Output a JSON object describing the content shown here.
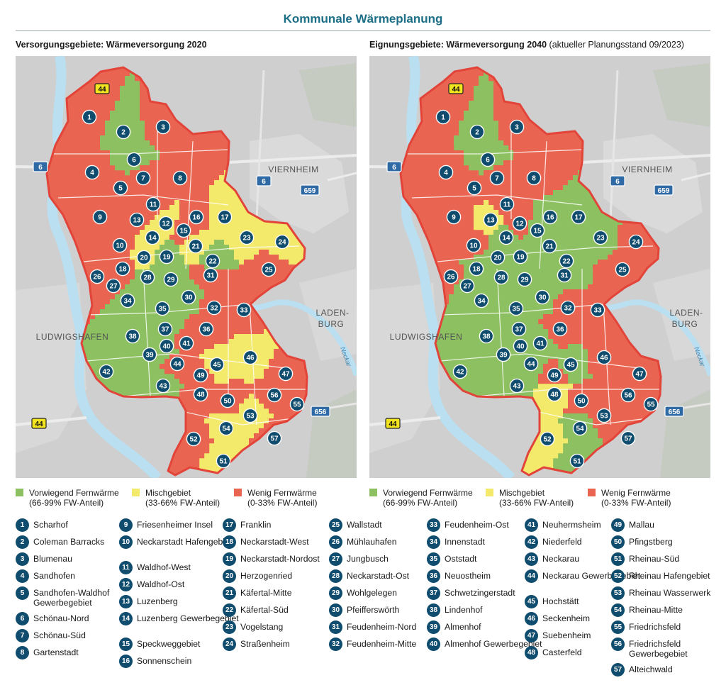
{
  "title": "Kommunale Wärmeplanung",
  "map_left": {
    "heading": "Versorgungsgebiete: Wärmeversorgung 2020",
    "subheading": ""
  },
  "map_right": {
    "heading": "Eignungsgebiete: Wärmeversorgung 2040",
    "subheading": "(aktueller Planungsstand 09/2023)"
  },
  "map_labels": {
    "viernheim": "VIERNHEIM",
    "ludwigshafen": "LUDWIGSHAFEN",
    "laden": "LADEN-",
    "burg": "BURG",
    "neckar": "Neckar",
    "road_44": "44",
    "road_6": "6",
    "road_659": "659",
    "road_656": "656"
  },
  "legend": {
    "green": {
      "line1": "Vorwiegend Fernwärme",
      "line2": "(66-99% FW-Anteil)",
      "color": "#8cc060"
    },
    "yellow": {
      "line1": "Mischgebiet",
      "line2": "(33-66% FW-Anteil)",
      "color": "#f3e96b"
    },
    "red": {
      "line1": "Wenig Fernwärme",
      "line2": "(0-33% FW-Anteil)",
      "color": "#ea6551"
    }
  },
  "colors": {
    "badge": "#0f4c6e",
    "title": "#1b6e86",
    "outline": "#e2443a",
    "road": "#f2e41e",
    "water": "#b9dff0",
    "land": "#cfcfcf"
  },
  "districts": [
    {
      "n": "1",
      "name": "Scharhof"
    },
    {
      "n": "2",
      "name": "Coleman Barracks"
    },
    {
      "n": "3",
      "name": "Blumenau"
    },
    {
      "n": "4",
      "name": "Sandhofen"
    },
    {
      "n": "5",
      "name": "Sandhofen-Waldhof Gewerbegebiet"
    },
    {
      "n": "6",
      "name": "Schönau-Nord"
    },
    {
      "n": "7",
      "name": "Schönau-Süd"
    },
    {
      "n": "8",
      "name": "Gartenstadt"
    },
    {
      "n": "9",
      "name": "Friesenheimer Insel"
    },
    {
      "n": "10",
      "name": "Neckarstadt Hafengebiet"
    },
    {
      "n": "11",
      "name": "Waldhof-West"
    },
    {
      "n": "12",
      "name": "Waldhof-Ost"
    },
    {
      "n": "13",
      "name": "Luzenberg"
    },
    {
      "n": "14",
      "name": "Luzenberg Gewerbegebiet"
    },
    {
      "n": "15",
      "name": "Speckweggebiet"
    },
    {
      "n": "16",
      "name": "Sonnenschein"
    },
    {
      "n": "17",
      "name": "Franklin"
    },
    {
      "n": "18",
      "name": "Neckarstadt-West"
    },
    {
      "n": "19",
      "name": "Neckarstadt-Nordost"
    },
    {
      "n": "20",
      "name": "Herzogenried"
    },
    {
      "n": "21",
      "name": "Käfertal-Mitte"
    },
    {
      "n": "22",
      "name": "Käfertal-Süd"
    },
    {
      "n": "23",
      "name": "Vogelstang"
    },
    {
      "n": "24",
      "name": "Straßenheim"
    },
    {
      "n": "25",
      "name": "Wallstadt"
    },
    {
      "n": "26",
      "name": "Mühlauhafen"
    },
    {
      "n": "27",
      "name": "Jungbusch"
    },
    {
      "n": "28",
      "name": "Neckarstadt-Ost"
    },
    {
      "n": "29",
      "name": "Wohlgelegen"
    },
    {
      "n": "30",
      "name": "Pfeifferswörth"
    },
    {
      "n": "31",
      "name": "Feudenheim-Nord"
    },
    {
      "n": "32",
      "name": "Feudenheim-Mitte"
    },
    {
      "n": "33",
      "name": "Feudenheim-Ost"
    },
    {
      "n": "34",
      "name": "Innenstadt"
    },
    {
      "n": "35",
      "name": "Oststadt"
    },
    {
      "n": "36",
      "name": "Neuostheim"
    },
    {
      "n": "37",
      "name": "Schwetzingerstadt"
    },
    {
      "n": "38",
      "name": "Lindenhof"
    },
    {
      "n": "39",
      "name": "Almenhof"
    },
    {
      "n": "40",
      "name": "Almenhof Gewerbegebiet"
    },
    {
      "n": "41",
      "name": "Neuhermsheim"
    },
    {
      "n": "42",
      "name": "Niederfeld"
    },
    {
      "n": "43",
      "name": "Neckarau"
    },
    {
      "n": "44",
      "name": "Neckarau Gewerbegebiet"
    },
    {
      "n": "45",
      "name": "Hochstätt"
    },
    {
      "n": "46",
      "name": "Seckenheim"
    },
    {
      "n": "47",
      "name": "Suebenheim"
    },
    {
      "n": "48",
      "name": "Casterfeld"
    },
    {
      "n": "49",
      "name": "Mallau"
    },
    {
      "n": "50",
      "name": "Pfingstberg"
    },
    {
      "n": "51",
      "name": "Rheinau-Süd"
    },
    {
      "n": "52",
      "name": "Rheinau Hafengebiet"
    },
    {
      "n": "53",
      "name": "Rheinau Wasserwerk"
    },
    {
      "n": "54",
      "name": "Rheinau-Mitte"
    },
    {
      "n": "55",
      "name": "Friedrichsfeld"
    },
    {
      "n": "56",
      "name": "Friedrichsfeld Gewerbegebiet"
    },
    {
      "n": "57",
      "name": "Alteichwald"
    }
  ]
}
